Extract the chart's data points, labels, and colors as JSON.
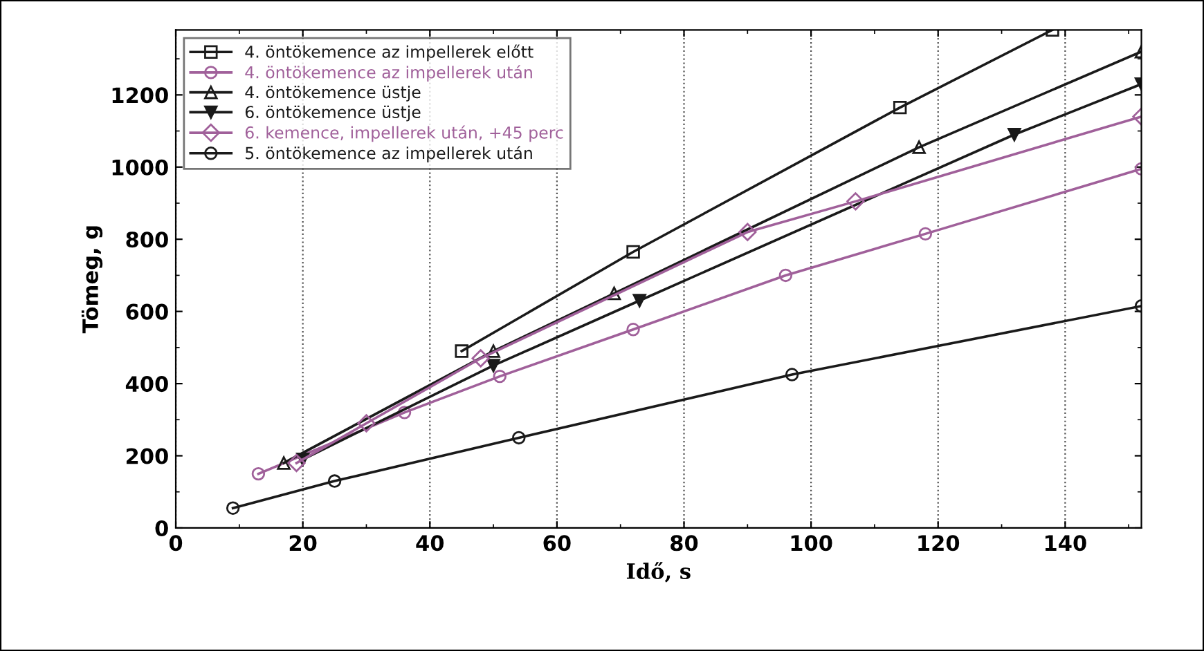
{
  "chart_data": {
    "type": "line",
    "xlabel": "Idő, s",
    "ylabel": "Tömeg, g",
    "xlim": [
      0,
      152
    ],
    "ylim": [
      0,
      1380
    ],
    "xticks": [
      0,
      20,
      40,
      60,
      80,
      100,
      120,
      140
    ],
    "yticks": [
      0,
      200,
      400,
      600,
      800,
      1000,
      1200
    ],
    "grid": "x",
    "legend": "top left",
    "series": [
      {
        "name": "4. öntökemence az impellerek előtt",
        "color": "#1a1a1a",
        "marker": "square",
        "x": [
          45,
          72,
          114,
          138
        ],
        "values": [
          490,
          765,
          1165,
          1380
        ]
      },
      {
        "name": "4. öntökemence az impellerek után",
        "color": "#a0609a",
        "marker": "circle",
        "x": [
          13,
          36,
          51,
          72,
          96,
          118,
          152
        ],
        "values": [
          150,
          320,
          420,
          550,
          700,
          815,
          995
        ]
      },
      {
        "name": "4. öntökemence üstje",
        "color": "#1a1a1a",
        "marker": "triangle",
        "x": [
          17,
          50,
          69,
          117,
          152
        ],
        "values": [
          180,
          490,
          650,
          1055,
          1320
        ]
      },
      {
        "name": "6. öntökemence üstje",
        "color": "#1a1a1a",
        "marker": "triangle_down",
        "x": [
          20,
          50,
          73,
          132,
          152
        ],
        "values": [
          190,
          450,
          630,
          1090,
          1230
        ]
      },
      {
        "name": "6. kemence, impellerek után, +45 perc",
        "color": "#a0609a",
        "marker": "diamond",
        "x": [
          19,
          30,
          48,
          90,
          107,
          152
        ],
        "values": [
          180,
          290,
          470,
          820,
          905,
          1140
        ]
      },
      {
        "name": "5. öntökemence az impellerek után",
        "color": "#1a1a1a",
        "marker": "circle",
        "x": [
          9,
          25,
          54,
          97,
          152
        ],
        "values": [
          55,
          130,
          250,
          425,
          615
        ]
      }
    ]
  }
}
